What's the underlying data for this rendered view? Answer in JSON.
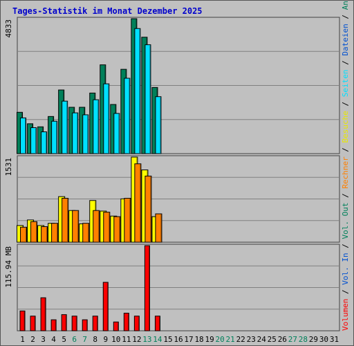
{
  "chart_data": {
    "type": "bar",
    "title": "Tages-Statistik im Monat Dezember 2025",
    "categories": [
      "1",
      "2",
      "3",
      "4",
      "5",
      "6",
      "7",
      "8",
      "9",
      "10",
      "11",
      "12",
      "13",
      "14",
      "15",
      "16",
      "17",
      "18",
      "19",
      "20",
      "21",
      "22",
      "23",
      "24",
      "25",
      "26",
      "27",
      "28",
      "29",
      "30",
      "31"
    ],
    "weekend_day_indices": [
      5,
      6,
      12,
      13,
      19,
      20,
      26,
      27
    ],
    "panels": [
      {
        "scale_label": "4833",
        "max": 4833,
        "series": [
          {
            "name": "Anfragen",
            "color": "#00805a",
            "values": [
              1480,
              1070,
              960,
              1330,
              2280,
              1660,
              1660,
              2170,
              3180,
              1760,
              3020,
              4833,
              4170,
              2370,
              0,
              0,
              0,
              0,
              0,
              0,
              0,
              0,
              0,
              0,
              0,
              0,
              0,
              0,
              0,
              0,
              0
            ]
          },
          {
            "name": "Dateien",
            "color": "#0050d0",
            "values": [
              1280,
              930,
              780,
              1160,
              1880,
              1460,
              1390,
              1930,
              2500,
              1440,
              2700,
              4480,
              3900,
              2040,
              0,
              0,
              0,
              0,
              0,
              0,
              0,
              0,
              0,
              0,
              0,
              0,
              0,
              0,
              0,
              0,
              0
            ]
          },
          {
            "name": "Seiten",
            "color": "#00e0ff",
            "values": [
              1280,
              930,
              780,
              1160,
              1880,
              1460,
              1390,
              1930,
              2500,
              1440,
              2700,
              4480,
              3900,
              2040,
              0,
              0,
              0,
              0,
              0,
              0,
              0,
              0,
              0,
              0,
              0,
              0,
              0,
              0,
              0,
              0,
              0
            ]
          }
        ]
      },
      {
        "scale_label": "1531",
        "max": 1531,
        "series": [
          {
            "name": "Besuche",
            "color": "#ffff00",
            "values": [
              300,
              400,
              300,
              340,
              820,
              570,
              330,
              750,
              560,
              470,
              780,
              1531,
              1300,
              460,
              0,
              0,
              0,
              0,
              0,
              0,
              0,
              0,
              0,
              0,
              0,
              0,
              0,
              0,
              0,
              0,
              0
            ]
          },
          {
            "name": "Rechner",
            "color": "#ff8000",
            "values": [
              270,
              370,
              280,
              340,
              790,
              570,
              340,
              570,
              540,
              460,
              790,
              1410,
              1190,
              510,
              0,
              0,
              0,
              0,
              0,
              0,
              0,
              0,
              0,
              0,
              0,
              0,
              0,
              0,
              0,
              0,
              0
            ]
          }
        ]
      },
      {
        "scale_label": "115.94 MB",
        "max": 115.94,
        "series": [
          {
            "name": "Volumen",
            "color": "#ff0000",
            "values": [
              27,
              20,
              45,
              15,
              22,
              20,
              15,
              20,
              66,
              12,
              24,
              20,
              115.94,
              20,
              0,
              0,
              0,
              0,
              0,
              0,
              0,
              0,
              0,
              0,
              0,
              0,
              0,
              0,
              0,
              0,
              0
            ]
          }
        ]
      }
    ],
    "legend_right": [
      {
        "name": "Volumen",
        "color": "#ff0000"
      },
      {
        "name": "Vol. In",
        "color": "#0050d0"
      },
      {
        "name": "Vol. Out",
        "color": "#00805a"
      },
      {
        "name": "Rechner",
        "color": "#ff8000"
      },
      {
        "name": "Besuche",
        "color": "#e8e800"
      },
      {
        "name": "Seiten",
        "color": "#00e0ff"
      },
      {
        "name": "Dateien",
        "color": "#0050d0"
      },
      {
        "name": "Anfragen",
        "color": "#00805a"
      }
    ],
    "legend_separator": "/"
  }
}
